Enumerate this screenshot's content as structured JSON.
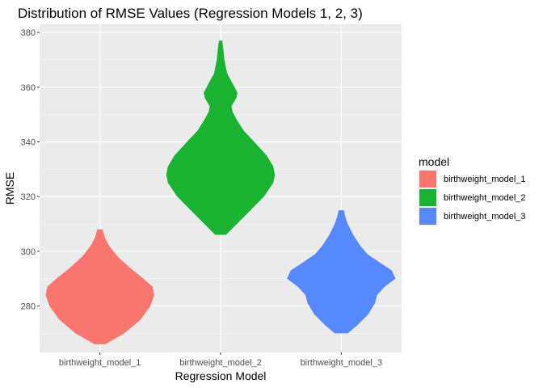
{
  "chart_data": {
    "type": "violin",
    "title": "Distribution of RMSE Values (Regression Models 1, 2, 3)",
    "xlabel": "Regression Model",
    "ylabel": "RMSE",
    "ylim": [
      263,
      383
    ],
    "yticks": [
      280,
      300,
      320,
      340,
      360,
      380
    ],
    "categories": [
      "birthweight_model_1",
      "birthweight_model_2",
      "birthweight_model_3"
    ],
    "grid": true,
    "legend": {
      "title": "model",
      "placement": "right",
      "entries": [
        "birthweight_model_1",
        "birthweight_model_2",
        "birthweight_model_3"
      ]
    },
    "series": [
      {
        "category": "birthweight_model_1",
        "color": "#F8766D",
        "profile": [
          [
            266,
            0.1
          ],
          [
            270,
            0.45
          ],
          [
            275,
            0.75
          ],
          [
            280,
            0.93
          ],
          [
            284,
            1.0
          ],
          [
            287,
            0.97
          ],
          [
            290,
            0.8
          ],
          [
            294,
            0.55
          ],
          [
            298,
            0.33
          ],
          [
            302,
            0.17
          ],
          [
            305,
            0.09
          ],
          [
            308,
            0.05
          ]
        ]
      },
      {
        "category": "birthweight_model_2",
        "color": "#1AB331",
        "profile": [
          [
            306,
            0.1
          ],
          [
            310,
            0.3
          ],
          [
            315,
            0.55
          ],
          [
            320,
            0.8
          ],
          [
            325,
            0.97
          ],
          [
            328,
            1.0
          ],
          [
            331,
            0.97
          ],
          [
            335,
            0.85
          ],
          [
            340,
            0.62
          ],
          [
            344,
            0.43
          ],
          [
            348,
            0.3
          ],
          [
            351,
            0.22
          ],
          [
            353,
            0.2
          ],
          [
            356,
            0.29
          ],
          [
            358,
            0.31
          ],
          [
            361,
            0.23
          ],
          [
            365,
            0.12
          ],
          [
            370,
            0.07
          ],
          [
            374,
            0.05
          ],
          [
            377,
            0.03
          ]
        ]
      },
      {
        "category": "birthweight_model_3",
        "color": "#5689FF",
        "profile": [
          [
            270,
            0.12
          ],
          [
            273,
            0.3
          ],
          [
            277,
            0.5
          ],
          [
            281,
            0.62
          ],
          [
            284,
            0.66
          ],
          [
            287,
            0.8
          ],
          [
            290,
            1.0
          ],
          [
            293,
            0.93
          ],
          [
            296,
            0.7
          ],
          [
            299,
            0.48
          ],
          [
            302,
            0.35
          ],
          [
            306,
            0.22
          ],
          [
            310,
            0.12
          ],
          [
            313,
            0.07
          ],
          [
            315,
            0.05
          ]
        ]
      }
    ]
  }
}
